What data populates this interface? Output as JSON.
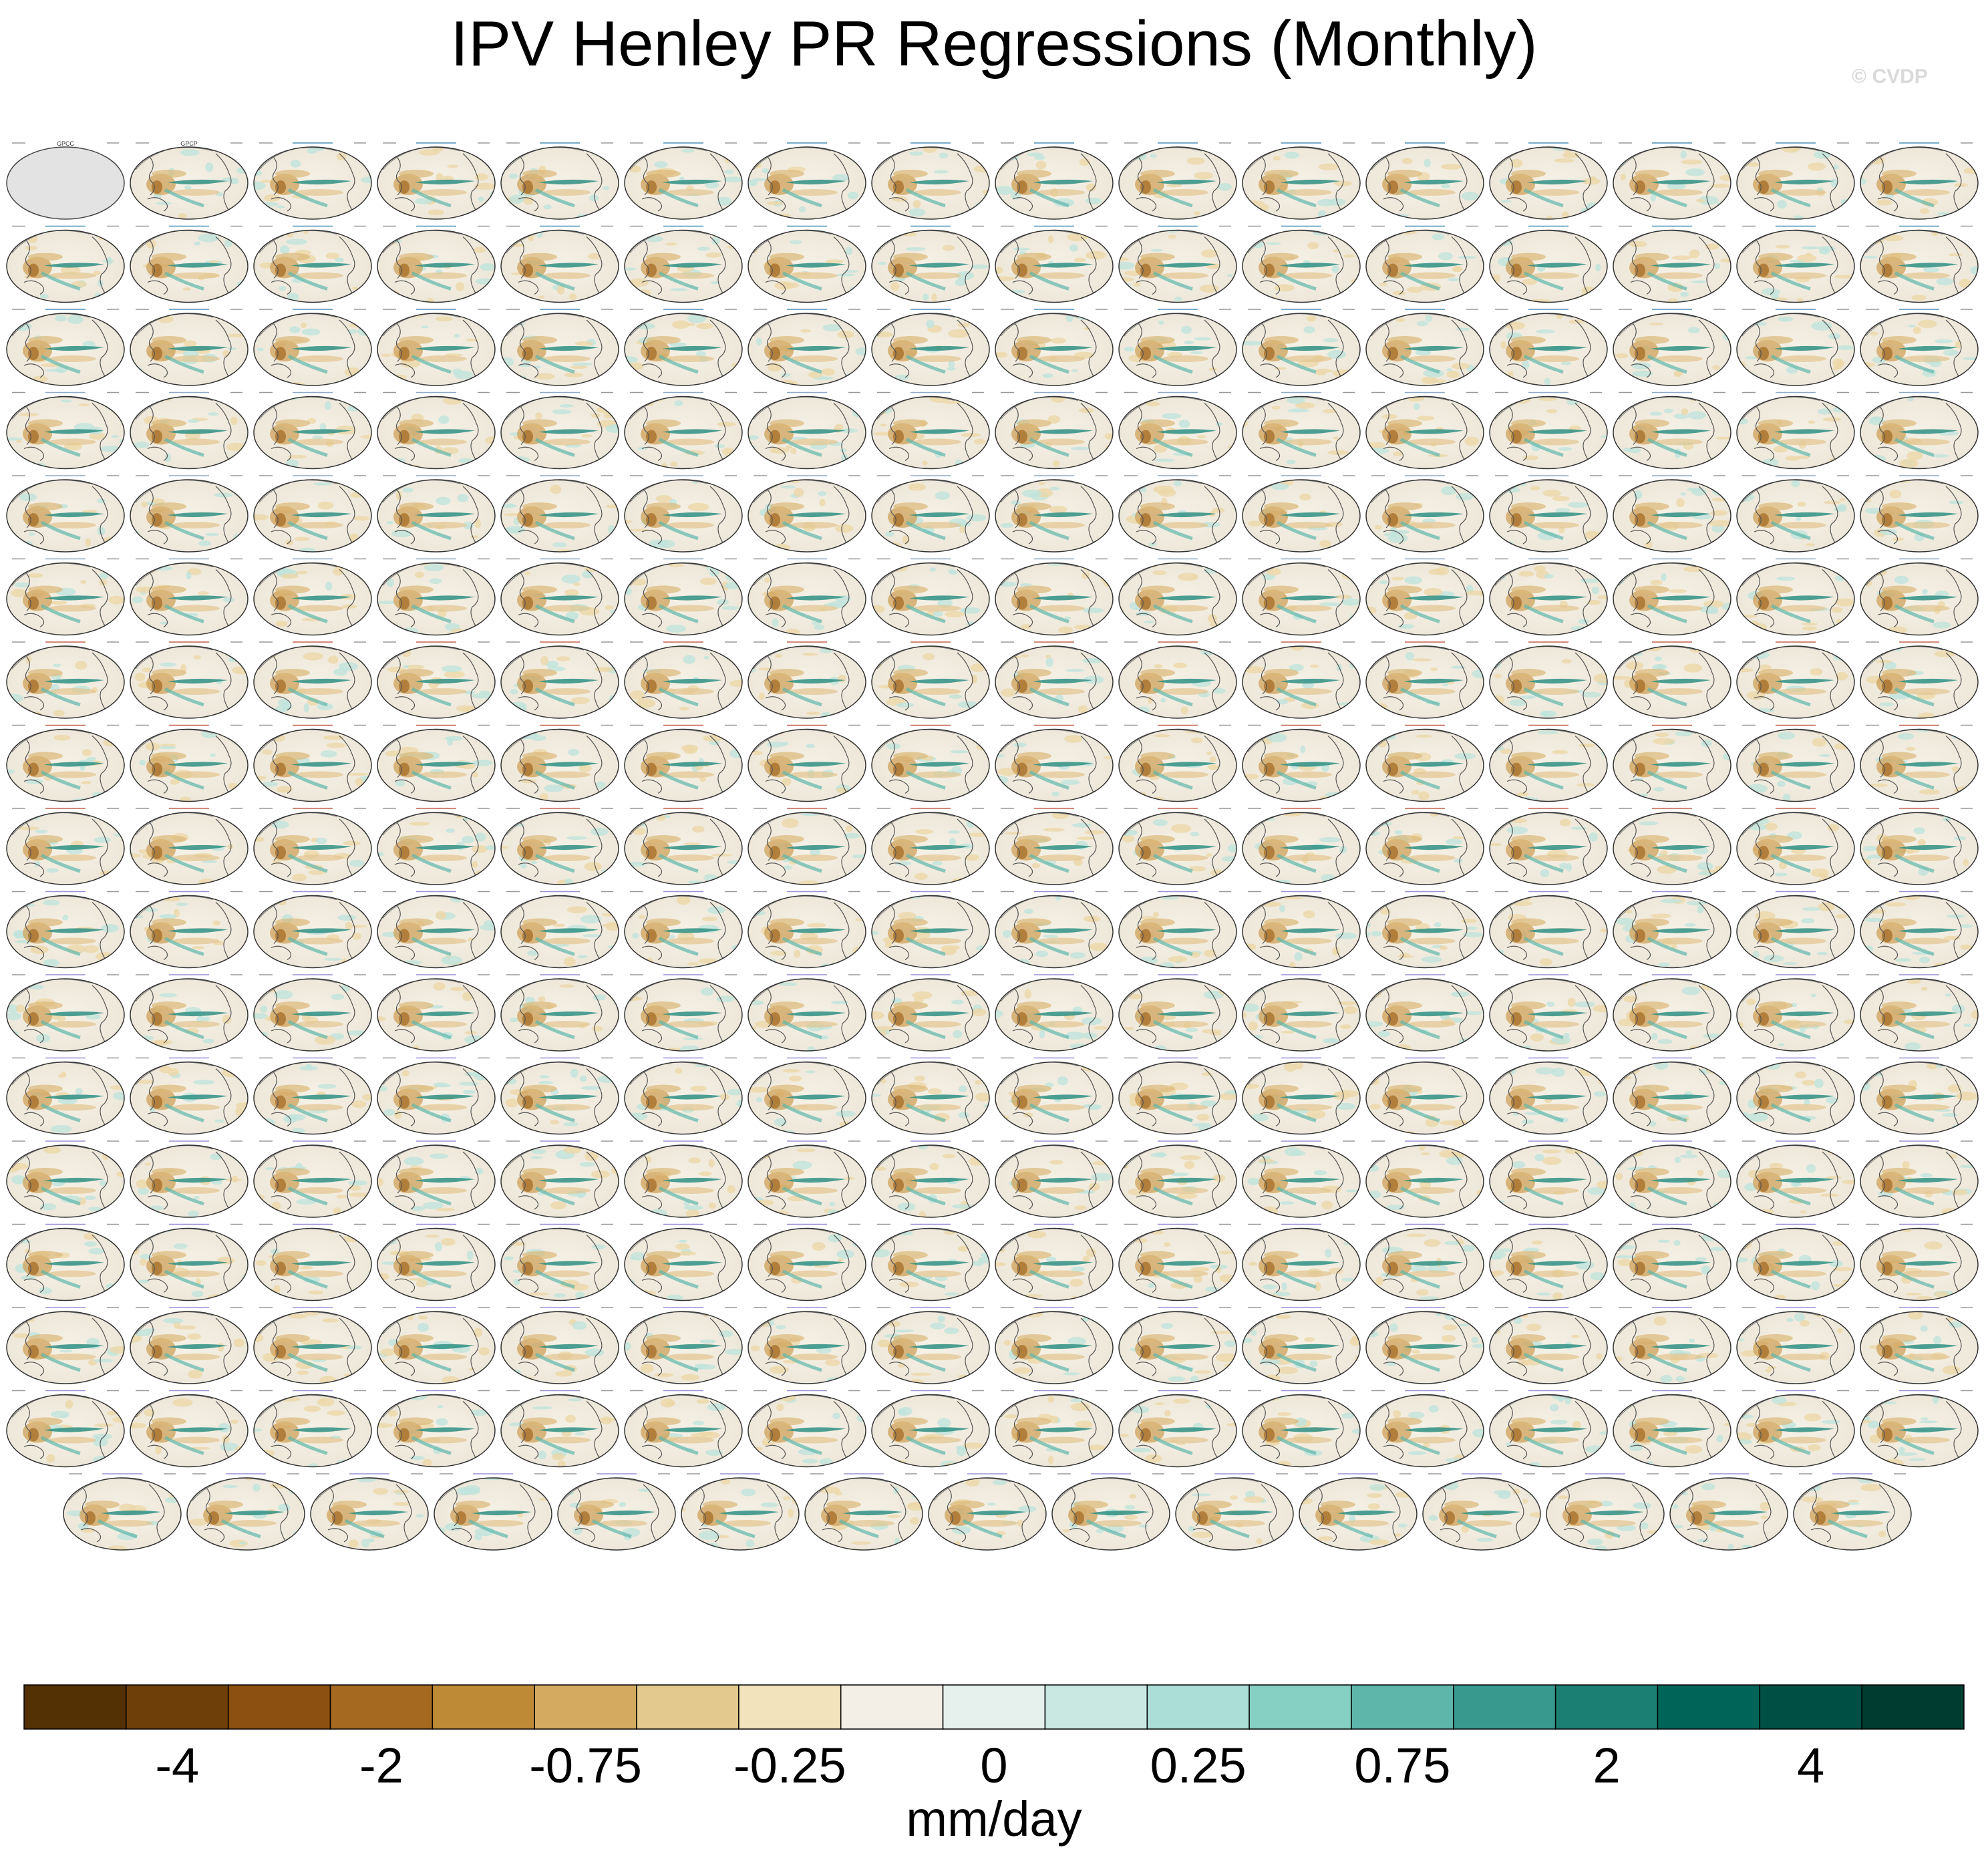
{
  "header": {
    "title": "IPV Henley PR Regressions (Monthly)",
    "copyright": "© CVDP"
  },
  "panels": {
    "rows": 17,
    "columns": 16,
    "last_row_count": 15,
    "legible_titles": [
      "GPCC",
      "GPCP"
    ],
    "first_panel_missing_data": true
  },
  "chart_data": {
    "type": "heatmap",
    "title": "IPV Henley PR Regressions (Monthly)",
    "units": "mm/day",
    "colorbar": {
      "colors": [
        "#543005",
        "#6f3f0a",
        "#8c5110",
        "#a56a1f",
        "#bf8a36",
        "#d4aa60",
        "#e3c98d",
        "#f2e3bd",
        "#f3efe6",
        "#e6f0ed",
        "#c9e8e2",
        "#aaded6",
        "#86cfc3",
        "#5eb6ab",
        "#389a8f",
        "#1b7f74",
        "#006559",
        "#004f44",
        "#003c30"
      ],
      "tick_labels": [
        "-4",
        "-2",
        "-0.75",
        "-0.25",
        "0",
        "0.25",
        "0.75",
        "2",
        "4"
      ],
      "tick_boundaries": [
        2,
        4,
        6,
        8,
        10,
        12,
        14,
        16,
        18
      ]
    }
  }
}
